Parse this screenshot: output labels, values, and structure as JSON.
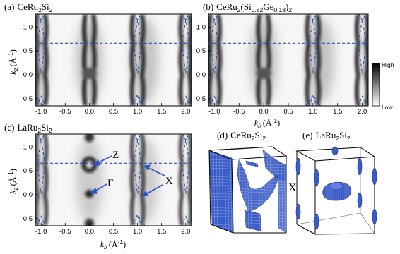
{
  "panels": [
    {
      "id": "a",
      "label": "(a)",
      "compound": [
        "CeRu",
        "2",
        "Si",
        "2",
        "",
        ""
      ]
    },
    {
      "id": "b",
      "label": "(b)",
      "compound": [
        "CeRu",
        "2",
        "(Si",
        "0.82",
        "Ge",
        "0.18",
        ")",
        "2"
      ]
    },
    {
      "id": "c",
      "label": "(c)",
      "compound": [
        "LaRu",
        "2",
        "Si",
        "2",
        "",
        ""
      ]
    },
    {
      "id": "d",
      "label": "(d)",
      "compound": [
        "CeRu",
        "2",
        "Si",
        "2",
        "",
        ""
      ]
    },
    {
      "id": "e",
      "label": "(e)",
      "compound": [
        "LaRu",
        "2",
        "Si",
        "2",
        "",
        ""
      ]
    }
  ],
  "axes": {
    "ylabel_main": "k",
    "ylabel_sub": "z",
    "ylabel_unit": "(Å",
    "ylabel_exp": "-1",
    "ylabel_close": ")",
    "xlabel_main": "k",
    "xlabel_sub": "//",
    "xlabel_unit": "(Å",
    "xlabel_exp": "-1",
    "xlabel_close": ")",
    "y_ticks": [
      "1.0",
      "0.5",
      "0.0",
      "-0.5"
    ],
    "x_ticks": [
      "-1.0",
      "-0.5",
      "0.0",
      "0.5",
      "1.0",
      "1.5",
      "2.0"
    ]
  },
  "colorbar": {
    "high": "High",
    "low": "Low"
  },
  "annotations": {
    "Z": "Z",
    "Gamma": "Γ",
    "X": "X",
    "X_fs": "X"
  },
  "colors": {
    "blue": "#2b55c6",
    "dash": "#3050b0"
  }
}
